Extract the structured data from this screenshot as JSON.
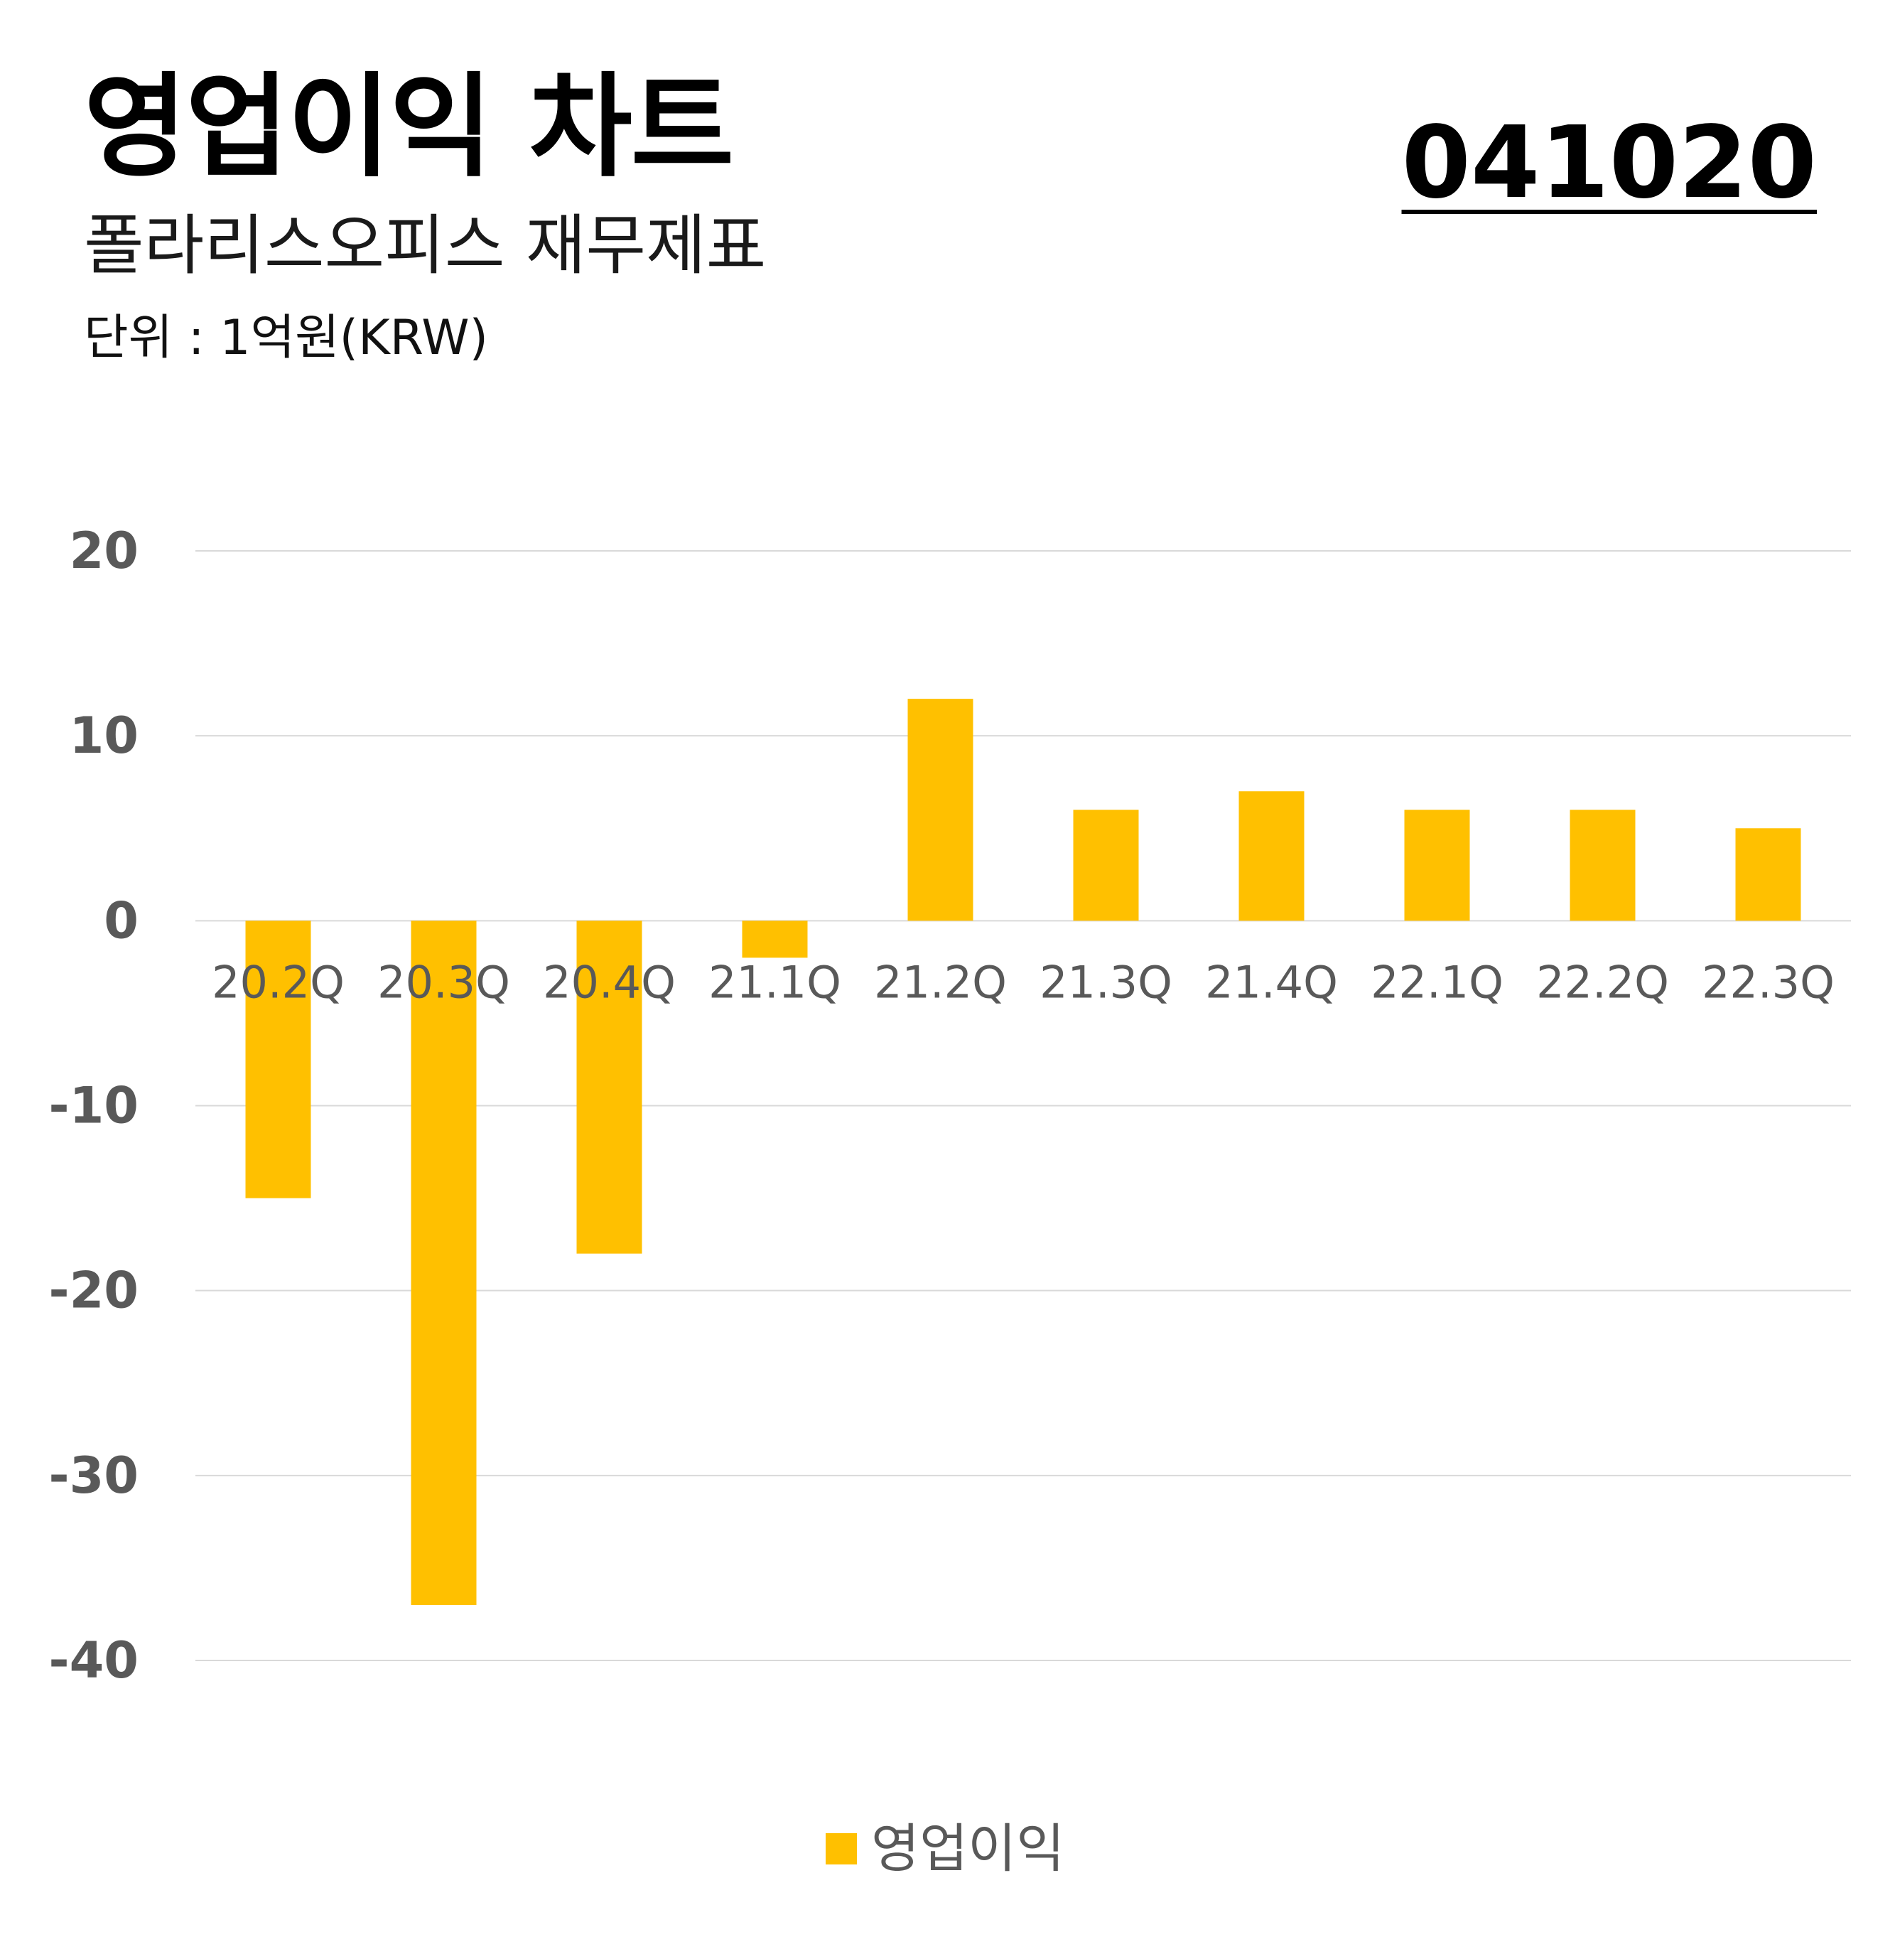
{
  "header": {
    "title": "영업이익 차트",
    "subtitle": "폴라리스오피스 재무제표",
    "unit": "단위 : 1억원(KRW)",
    "code": "041020"
  },
  "colors": {
    "bar": "#FFC000",
    "grid": "#d9d9d9",
    "axis_text": "#595959"
  },
  "chart_data": {
    "type": "bar",
    "categories": [
      "20.2Q",
      "20.3Q",
      "20.4Q",
      "21.1Q",
      "21.2Q",
      "21.3Q",
      "21.4Q",
      "22.1Q",
      "22.2Q",
      "22.3Q"
    ],
    "series": [
      {
        "name": "영업이익",
        "values": [
          -15,
          -37,
          -18,
          -2,
          12,
          6,
          7,
          6,
          6,
          5
        ]
      }
    ],
    "yticks": [
      "20",
      "10",
      "0",
      "-10",
      "-20",
      "-30",
      "-40"
    ],
    "ylim": [
      -40,
      20
    ],
    "grid": true,
    "legend": "bottom"
  }
}
